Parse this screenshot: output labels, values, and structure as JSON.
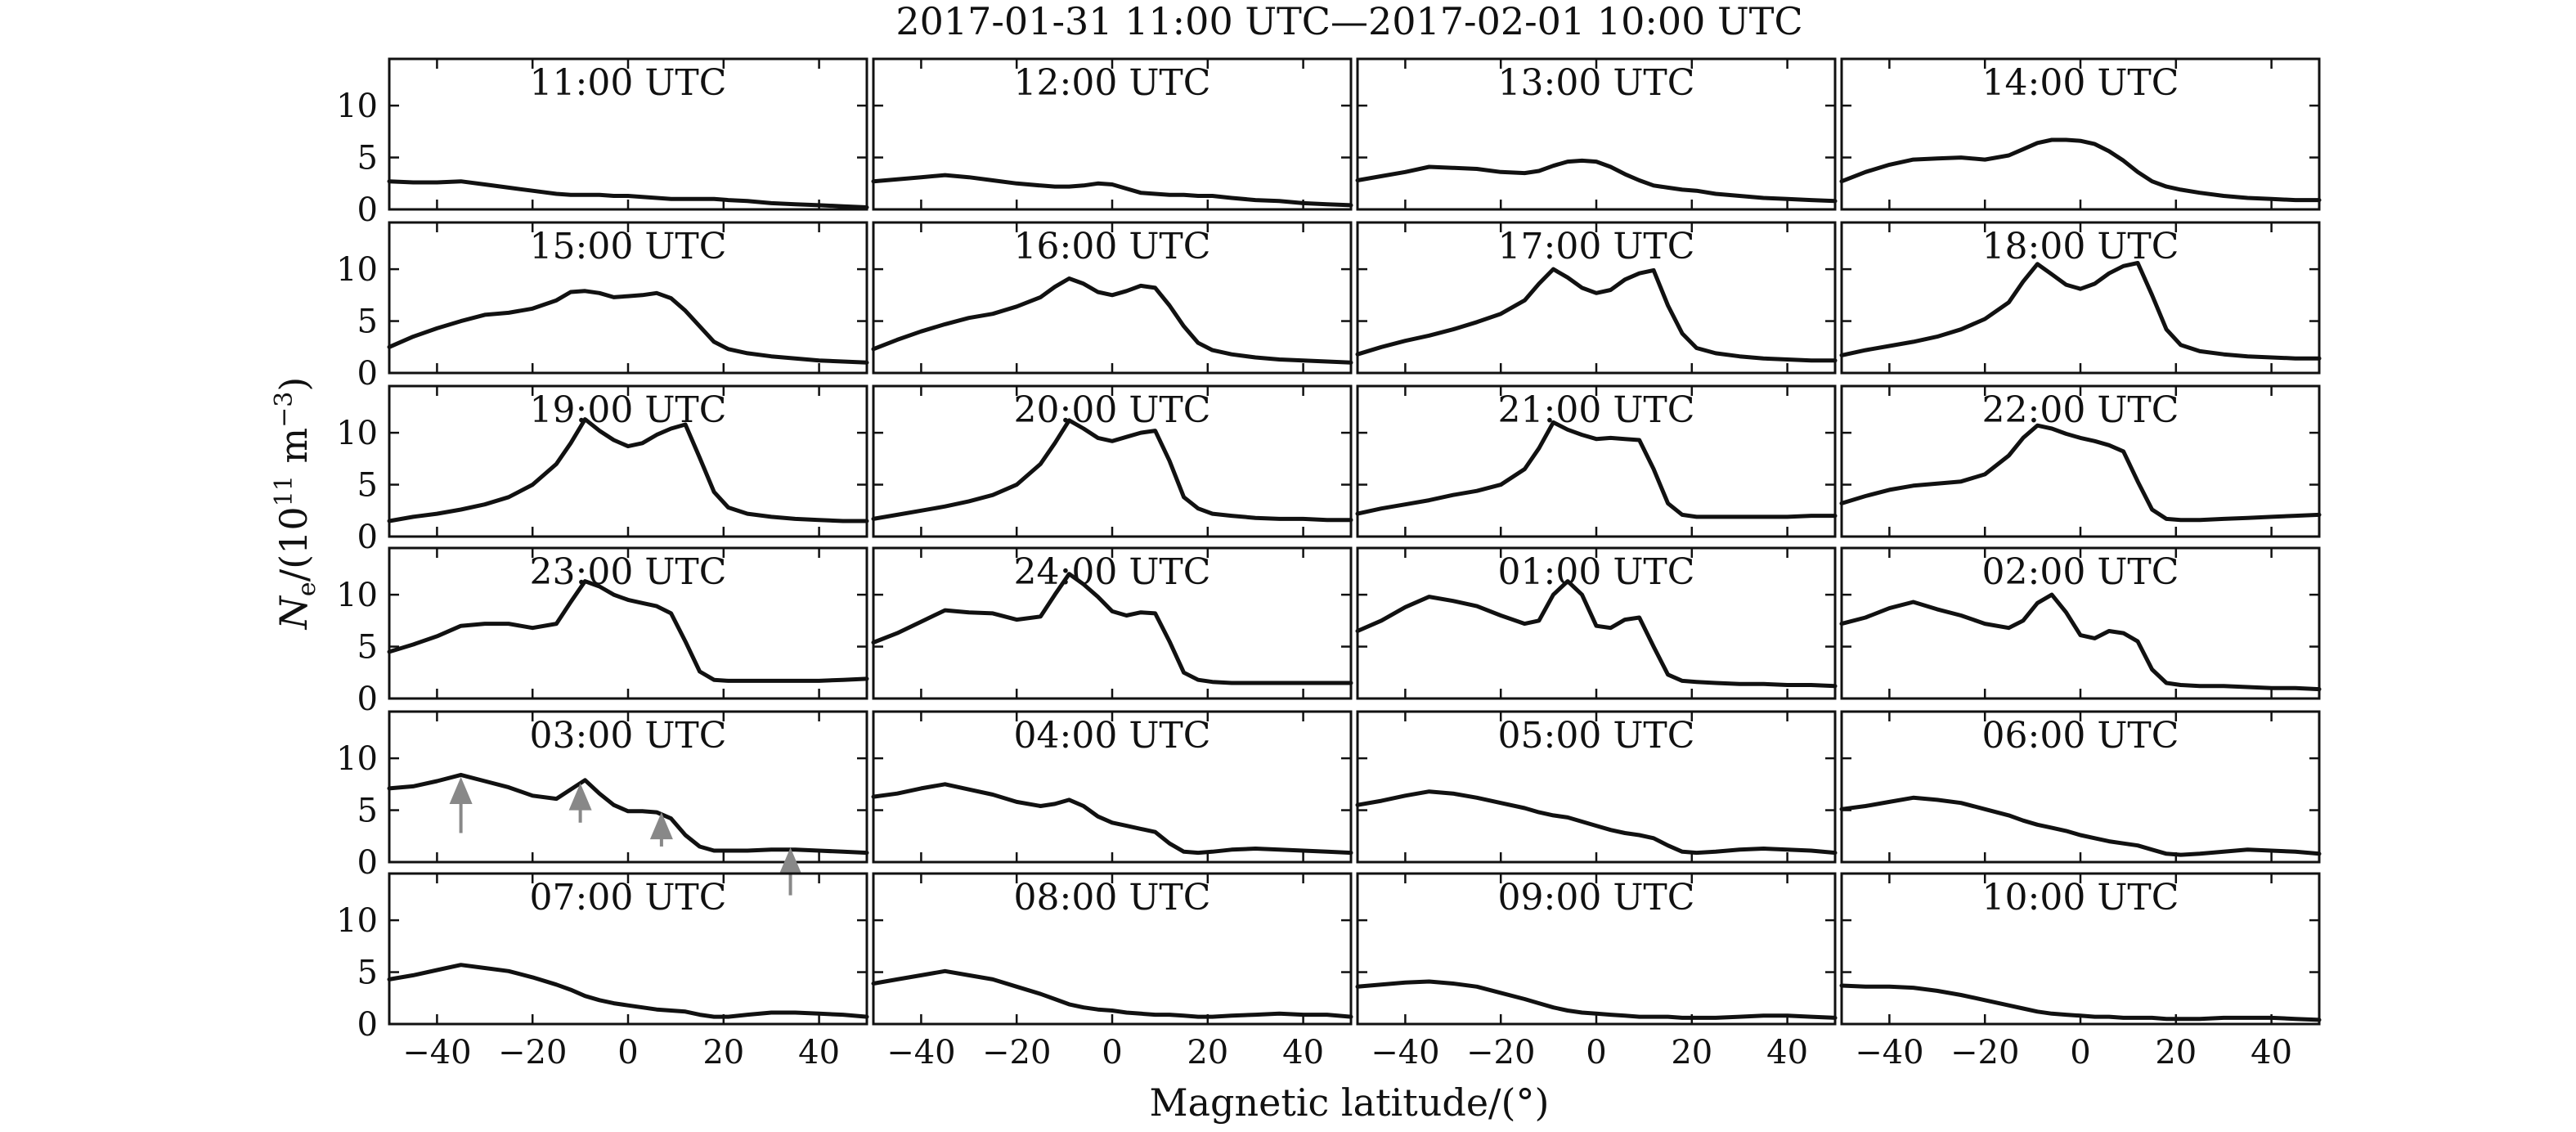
{
  "chart_data": {
    "type": "line",
    "title": "2017-01-31 11:00 UTC—2017-02-01 10:00 UTC",
    "xlabel": "Magnetic latitude/(°)",
    "ylabel_parts": {
      "sym": "N",
      "sub": "e",
      "mid": "/(10",
      "exp": "11",
      "unit": " m",
      "uexp": "−3",
      "close": ")"
    },
    "xlim": [
      -50,
      50
    ],
    "ylim": [
      0,
      14.5
    ],
    "xticks": [
      -40,
      -20,
      0,
      20,
      40
    ],
    "yticks": [
      0,
      5,
      10
    ],
    "xtick_labels": [
      "−40",
      "−20",
      "0",
      "20",
      "40"
    ],
    "ytick_labels": [
      "0",
      "5",
      "10"
    ],
    "grid": false,
    "x": [
      -50,
      -45,
      -40,
      -35,
      -30,
      -25,
      -20,
      -15,
      -12,
      -9,
      -6,
      -3,
      0,
      3,
      6,
      9,
      12,
      15,
      18,
      21,
      25,
      30,
      35,
      40,
      45,
      50
    ],
    "panels": [
      {
        "label": "11:00 UTC",
        "values": [
          2.7,
          2.6,
          2.6,
          2.7,
          2.4,
          2.1,
          1.8,
          1.5,
          1.4,
          1.4,
          1.4,
          1.3,
          1.3,
          1.2,
          1.1,
          1.0,
          1.0,
          1.0,
          1.0,
          0.9,
          0.8,
          0.6,
          0.5,
          0.4,
          0.3,
          0.2
        ]
      },
      {
        "label": "12:00 UTC",
        "values": [
          2.7,
          2.9,
          3.1,
          3.3,
          3.1,
          2.8,
          2.5,
          2.3,
          2.2,
          2.2,
          2.3,
          2.5,
          2.4,
          2.0,
          1.6,
          1.5,
          1.4,
          1.4,
          1.3,
          1.3,
          1.1,
          0.9,
          0.8,
          0.6,
          0.5,
          0.4
        ]
      },
      {
        "label": "13:00 UTC",
        "values": [
          2.8,
          3.2,
          3.6,
          4.1,
          4.0,
          3.9,
          3.6,
          3.5,
          3.7,
          4.2,
          4.6,
          4.7,
          4.6,
          4.1,
          3.4,
          2.8,
          2.3,
          2.1,
          1.9,
          1.8,
          1.5,
          1.3,
          1.1,
          1.0,
          0.9,
          0.8
        ]
      },
      {
        "label": "14:00 UTC",
        "values": [
          2.7,
          3.6,
          4.3,
          4.8,
          4.9,
          5.0,
          4.8,
          5.2,
          5.8,
          6.4,
          6.7,
          6.7,
          6.6,
          6.3,
          5.6,
          4.7,
          3.6,
          2.7,
          2.2,
          1.9,
          1.6,
          1.3,
          1.1,
          1.0,
          0.9,
          0.9
        ]
      },
      {
        "label": "15:00 UTC",
        "values": [
          2.5,
          3.5,
          4.3,
          5.0,
          5.6,
          5.8,
          6.2,
          7.0,
          7.8,
          7.9,
          7.7,
          7.3,
          7.4,
          7.5,
          7.7,
          7.2,
          6.0,
          4.5,
          3.0,
          2.3,
          1.9,
          1.6,
          1.4,
          1.2,
          1.1,
          1.0
        ]
      },
      {
        "label": "16:00 UTC",
        "values": [
          2.3,
          3.2,
          4.0,
          4.7,
          5.3,
          5.7,
          6.4,
          7.3,
          8.3,
          9.1,
          8.6,
          7.8,
          7.5,
          7.9,
          8.4,
          8.2,
          6.5,
          4.5,
          2.9,
          2.2,
          1.8,
          1.5,
          1.3,
          1.2,
          1.1,
          1.0
        ]
      },
      {
        "label": "17:00 UTC",
        "values": [
          1.8,
          2.5,
          3.1,
          3.6,
          4.2,
          4.9,
          5.7,
          7.0,
          8.6,
          10.0,
          9.2,
          8.2,
          7.7,
          8.0,
          9.0,
          9.6,
          9.9,
          6.5,
          3.8,
          2.4,
          1.9,
          1.6,
          1.4,
          1.3,
          1.2,
          1.2
        ]
      },
      {
        "label": "18:00 UTC",
        "values": [
          1.7,
          2.2,
          2.6,
          3.0,
          3.5,
          4.2,
          5.2,
          6.8,
          8.8,
          10.5,
          9.5,
          8.5,
          8.1,
          8.6,
          9.6,
          10.3,
          10.6,
          7.5,
          4.2,
          2.7,
          2.1,
          1.8,
          1.6,
          1.5,
          1.4,
          1.4
        ]
      },
      {
        "label": "19:00 UTC",
        "values": [
          1.5,
          1.9,
          2.2,
          2.6,
          3.1,
          3.8,
          5.0,
          7.0,
          9.0,
          11.3,
          10.2,
          9.3,
          8.7,
          9.0,
          9.8,
          10.4,
          10.8,
          7.6,
          4.3,
          2.8,
          2.2,
          1.9,
          1.7,
          1.6,
          1.5,
          1.5
        ]
      },
      {
        "label": "20:00 UTC",
        "values": [
          1.7,
          2.1,
          2.5,
          2.9,
          3.4,
          4.0,
          5.0,
          7.0,
          9.0,
          11.2,
          10.4,
          9.5,
          9.2,
          9.6,
          10.0,
          10.2,
          7.3,
          3.8,
          2.7,
          2.2,
          2.0,
          1.8,
          1.7,
          1.7,
          1.6,
          1.6
        ]
      },
      {
        "label": "21:00 UTC",
        "values": [
          2.2,
          2.7,
          3.1,
          3.5,
          4.0,
          4.4,
          5.0,
          6.5,
          8.5,
          11.0,
          10.3,
          9.8,
          9.4,
          9.5,
          9.4,
          9.3,
          6.5,
          3.2,
          2.1,
          1.9,
          1.9,
          1.9,
          1.9,
          1.9,
          2.0,
          2.0
        ]
      },
      {
        "label": "22:00 UTC",
        "values": [
          3.2,
          3.9,
          4.5,
          4.9,
          5.1,
          5.3,
          6.0,
          7.8,
          9.5,
          10.7,
          10.4,
          9.9,
          9.5,
          9.2,
          8.8,
          8.2,
          5.3,
          2.6,
          1.7,
          1.6,
          1.6,
          1.7,
          1.8,
          1.9,
          2.0,
          2.1
        ]
      },
      {
        "label": "23:00 UTC",
        "values": [
          4.5,
          5.2,
          6.0,
          7.0,
          7.2,
          7.2,
          6.8,
          7.2,
          9.3,
          11.3,
          10.8,
          10.0,
          9.5,
          9.2,
          8.9,
          8.2,
          5.5,
          2.6,
          1.8,
          1.7,
          1.7,
          1.7,
          1.7,
          1.7,
          1.8,
          1.9
        ]
      },
      {
        "label": "24:00 UTC",
        "values": [
          5.4,
          6.3,
          7.4,
          8.5,
          8.3,
          8.2,
          7.6,
          7.9,
          10.0,
          12.0,
          11.0,
          9.8,
          8.4,
          8.0,
          8.3,
          8.2,
          5.5,
          2.5,
          1.8,
          1.6,
          1.5,
          1.5,
          1.5,
          1.5,
          1.5,
          1.5
        ]
      },
      {
        "label": "01:00 UTC",
        "values": [
          6.5,
          7.5,
          8.8,
          9.8,
          9.4,
          8.9,
          8.0,
          7.2,
          7.5,
          10.0,
          11.3,
          10.0,
          7.0,
          6.8,
          7.6,
          7.8,
          5.0,
          2.3,
          1.7,
          1.6,
          1.5,
          1.4,
          1.4,
          1.3,
          1.3,
          1.2
        ]
      },
      {
        "label": "02:00 UTC",
        "values": [
          7.2,
          7.8,
          8.7,
          9.3,
          8.6,
          8.0,
          7.2,
          6.8,
          7.5,
          9.2,
          10.0,
          8.3,
          6.1,
          5.8,
          6.5,
          6.3,
          5.5,
          2.8,
          1.5,
          1.3,
          1.2,
          1.2,
          1.1,
          1.0,
          1.0,
          0.9
        ]
      },
      {
        "label": "03:00 UTC",
        "values": [
          7.1,
          7.3,
          7.8,
          8.4,
          7.8,
          7.2,
          6.4,
          6.1,
          7.0,
          7.9,
          6.6,
          5.5,
          4.9,
          4.9,
          4.8,
          4.2,
          2.6,
          1.5,
          1.1,
          1.1,
          1.1,
          1.2,
          1.2,
          1.1,
          1.0,
          0.9
        ]
      },
      {
        "label": "04:00 UTC",
        "values": [
          6.3,
          6.6,
          7.1,
          7.5,
          7.0,
          6.5,
          5.8,
          5.4,
          5.6,
          6.0,
          5.4,
          4.4,
          3.8,
          3.5,
          3.2,
          2.9,
          1.8,
          1.0,
          0.9,
          1.0,
          1.2,
          1.3,
          1.2,
          1.1,
          1.0,
          0.9
        ]
      },
      {
        "label": "05:00 UTC",
        "values": [
          5.5,
          5.9,
          6.4,
          6.8,
          6.6,
          6.2,
          5.7,
          5.2,
          4.8,
          4.5,
          4.3,
          3.9,
          3.5,
          3.1,
          2.8,
          2.6,
          2.3,
          1.6,
          1.0,
          0.9,
          1.0,
          1.2,
          1.3,
          1.2,
          1.1,
          0.9
        ]
      },
      {
        "label": "06:00 UTC",
        "values": [
          5.1,
          5.4,
          5.8,
          6.2,
          6.0,
          5.7,
          5.1,
          4.5,
          4.0,
          3.6,
          3.3,
          3.0,
          2.6,
          2.3,
          2.0,
          1.8,
          1.6,
          1.2,
          0.8,
          0.7,
          0.8,
          1.0,
          1.2,
          1.1,
          1.0,
          0.8
        ]
      },
      {
        "label": "07:00 UTC",
        "values": [
          4.3,
          4.7,
          5.2,
          5.7,
          5.4,
          5.1,
          4.5,
          3.8,
          3.3,
          2.7,
          2.3,
          2.0,
          1.8,
          1.6,
          1.4,
          1.3,
          1.2,
          0.9,
          0.7,
          0.7,
          0.9,
          1.1,
          1.1,
          1.0,
          0.9,
          0.7
        ]
      },
      {
        "label": "08:00 UTC",
        "values": [
          3.9,
          4.3,
          4.7,
          5.1,
          4.7,
          4.3,
          3.6,
          2.9,
          2.4,
          1.9,
          1.6,
          1.4,
          1.3,
          1.1,
          1.0,
          0.9,
          0.9,
          0.8,
          0.7,
          0.7,
          0.8,
          0.9,
          1.0,
          0.9,
          0.9,
          0.7
        ]
      },
      {
        "label": "09:00 UTC",
        "values": [
          3.6,
          3.8,
          4.0,
          4.1,
          3.9,
          3.6,
          3.0,
          2.4,
          2.0,
          1.6,
          1.3,
          1.1,
          1.0,
          0.9,
          0.8,
          0.7,
          0.7,
          0.7,
          0.6,
          0.6,
          0.6,
          0.7,
          0.8,
          0.8,
          0.7,
          0.6
        ]
      },
      {
        "label": "10:00 UTC",
        "values": [
          3.7,
          3.6,
          3.6,
          3.5,
          3.2,
          2.8,
          2.3,
          1.8,
          1.5,
          1.2,
          1.0,
          0.9,
          0.8,
          0.7,
          0.7,
          0.6,
          0.6,
          0.6,
          0.5,
          0.5,
          0.5,
          0.6,
          0.6,
          0.6,
          0.5,
          0.4
        ]
      }
    ],
    "annotations": [
      {
        "panel": 16,
        "type": "arrow",
        "x": -35,
        "y_tip": 7.8,
        "y_tail": 2.8,
        "color": "#888888"
      },
      {
        "panel": 16,
        "type": "arrow",
        "x": -10,
        "y_tip": 7.2,
        "y_tail": 3.8,
        "color": "#888888"
      },
      {
        "panel": 16,
        "type": "arrow",
        "x": 7,
        "y_tip": 4.4,
        "y_tail": 1.5,
        "color": "#888888"
      },
      {
        "panel": 16,
        "type": "arrow",
        "x": 34,
        "y_tip": 1.0,
        "y_tail": -3.2,
        "color": "#888888"
      }
    ],
    "colors": {
      "line": "#111111",
      "arrow": "#888888",
      "frame": "#111111"
    }
  }
}
